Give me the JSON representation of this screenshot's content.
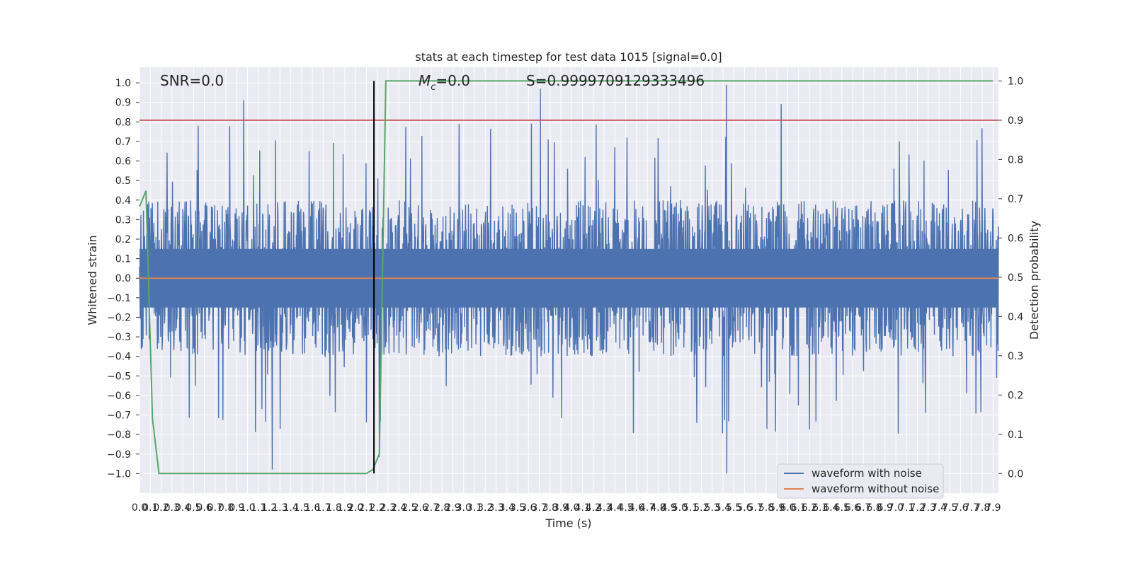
{
  "chart_data": {
    "type": "line",
    "title": "stats at each timestep for test data 1015 [signal=0.0]",
    "xlabel": "Time (s)",
    "ylabel_left": "Whitened strain",
    "ylabel_right": "Detection probability",
    "xlim": [
      0.0,
      7.95
    ],
    "ylim_left": [
      -1.1,
      1.08
    ],
    "ylim_right": [
      -0.05,
      1.035
    ],
    "x_ticks": [
      "0.0",
      "0.1",
      "0.2",
      "0.3",
      "0.4",
      "0.5",
      "0.6",
      "0.7",
      "0.8",
      "0.9",
      "1.0",
      "1.1",
      "1.2",
      "1.3",
      "1.4",
      "1.5",
      "1.6",
      "1.7",
      "1.8",
      "1.9",
      "2.0",
      "2.1",
      "2.2",
      "2.3",
      "2.4",
      "2.5",
      "2.6",
      "2.7",
      "2.8",
      "2.9",
      "3.0",
      "3.1",
      "3.2",
      "3.3",
      "3.4",
      "3.5",
      "3.6",
      "3.7",
      "3.8",
      "3.9",
      "4.0",
      "4.1",
      "4.2",
      "4.3",
      "4.4",
      "4.5",
      "4.6",
      "4.7",
      "4.8",
      "4.9",
      "5.0",
      "5.1",
      "5.2",
      "5.3",
      "5.4",
      "5.5",
      "5.6",
      "5.7",
      "5.8",
      "5.9",
      "6.0",
      "6.1",
      "6.2",
      "6.3",
      "6.4",
      "6.5",
      "6.6",
      "6.7",
      "6.8",
      "6.9",
      "7.0",
      "7.1",
      "7.2",
      "7.3",
      "7.4",
      "7.5",
      "7.6",
      "7.7",
      "7.8",
      "7.9"
    ],
    "y_ticks_left": [
      "−1.0",
      "−0.9",
      "−0.8",
      "−0.7",
      "−0.6",
      "−0.5",
      "−0.4",
      "−0.3",
      "−0.2",
      "−0.1",
      "0.0",
      "0.1",
      "0.2",
      "0.3",
      "0.4",
      "0.5",
      "0.6",
      "0.7",
      "0.8",
      "0.9",
      "1.0"
    ],
    "y_ticks_right": [
      "0.0",
      "0.1",
      "0.2",
      "0.3",
      "0.4",
      "0.5",
      "0.6",
      "0.7",
      "0.8",
      "0.9",
      "1.0"
    ],
    "annotations": {
      "snr": "SNR=0.0",
      "mc_symbol": "M",
      "mc_sub": "c",
      "mc_value": "=0.0",
      "stat": "S=0.9999709129333496"
    },
    "legend": {
      "placement": "lower-right",
      "entries": [
        "waveform with noise",
        "waveform without noise"
      ]
    },
    "grid": true,
    "colors": {
      "background": "#EAEAF2",
      "grid": "#FFFFFF",
      "noisy": "#4C72B0",
      "clean": "#DD8452",
      "probability": "#55A868",
      "threshold": "#C44E52",
      "marker": "#000000"
    },
    "threshold_probability": 0.9,
    "detection_marker_time": 2.17,
    "series": [
      {
        "name": "waveform with noise",
        "axis": "left",
        "noise_envelope": {
          "typical_amplitude": 0.4,
          "max_value": 0.99,
          "min_value": -1.0
        }
      },
      {
        "name": "waveform without noise",
        "axis": "left",
        "x": [
          0.0,
          7.95
        ],
        "y": [
          0.0,
          0.0
        ]
      },
      {
        "name": "detection probability",
        "axis": "right",
        "x": [
          0.0,
          0.06,
          0.12,
          0.18,
          2.1,
          2.16,
          2.22,
          2.28,
          7.9
        ],
        "y": [
          0.68,
          0.72,
          0.14,
          0.0,
          0.0,
          0.01,
          0.05,
          1.0,
          1.0
        ]
      }
    ]
  }
}
